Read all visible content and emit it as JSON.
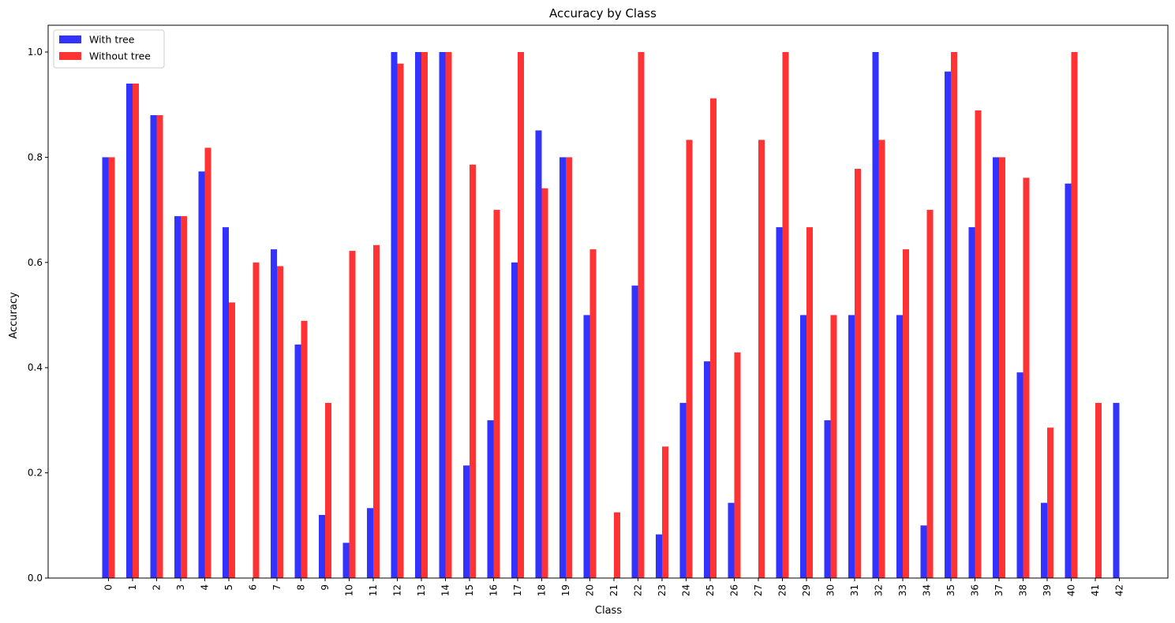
{
  "chart_data": {
    "type": "bar",
    "title": "Accuracy by Class",
    "xlabel": "Class",
    "ylabel": "Accuracy",
    "ylim": [
      0,
      1.05
    ],
    "yticks": [
      "0.0",
      "0.2",
      "0.4",
      "0.6",
      "0.8",
      "1.0"
    ],
    "ytick_values": [
      0,
      0.2,
      0.4,
      0.6,
      0.8,
      1.0
    ],
    "grid": false,
    "legend_position": "upper-left",
    "categories": [
      "0",
      "1",
      "2",
      "3",
      "4",
      "5",
      "6",
      "7",
      "8",
      "9",
      "10",
      "11",
      "12",
      "13",
      "14",
      "15",
      "16",
      "17",
      "18",
      "19",
      "20",
      "21",
      "22",
      "23",
      "24",
      "25",
      "26",
      "27",
      "28",
      "29",
      "30",
      "31",
      "32",
      "33",
      "34",
      "35",
      "36",
      "37",
      "38",
      "39",
      "40",
      "41",
      "42"
    ],
    "series": [
      {
        "name": "With tree",
        "color": "#3333ff",
        "values": [
          0.8,
          0.94,
          0.88,
          0.688,
          0.773,
          0.667,
          0.0,
          0.625,
          0.444,
          0.12,
          0.067,
          0.133,
          1.0,
          1.0,
          1.0,
          0.214,
          0.3,
          0.6,
          0.851,
          0.8,
          0.5,
          0.0,
          0.556,
          0.083,
          0.333,
          0.412,
          0.143,
          0.0,
          0.667,
          0.5,
          0.3,
          0.5,
          1.0,
          0.5,
          0.1,
          0.963,
          0.667,
          0.8,
          0.391,
          0.143,
          0.75,
          0.0,
          0.333
        ]
      },
      {
        "name": "Without tree",
        "color": "#ff3333",
        "values": [
          0.8,
          0.94,
          0.88,
          0.688,
          0.818,
          0.524,
          0.6,
          0.593,
          0.489,
          0.333,
          0.622,
          0.633,
          0.978,
          1.0,
          1.0,
          0.786,
          0.7,
          1.0,
          0.741,
          0.8,
          0.625,
          0.125,
          1.0,
          0.25,
          0.833,
          0.912,
          0.429,
          0.833,
          1.0,
          0.667,
          0.5,
          0.778,
          0.833,
          0.625,
          0.7,
          1.0,
          0.889,
          0.8,
          0.761,
          0.286,
          1.0,
          0.333,
          0.0
        ]
      }
    ]
  }
}
